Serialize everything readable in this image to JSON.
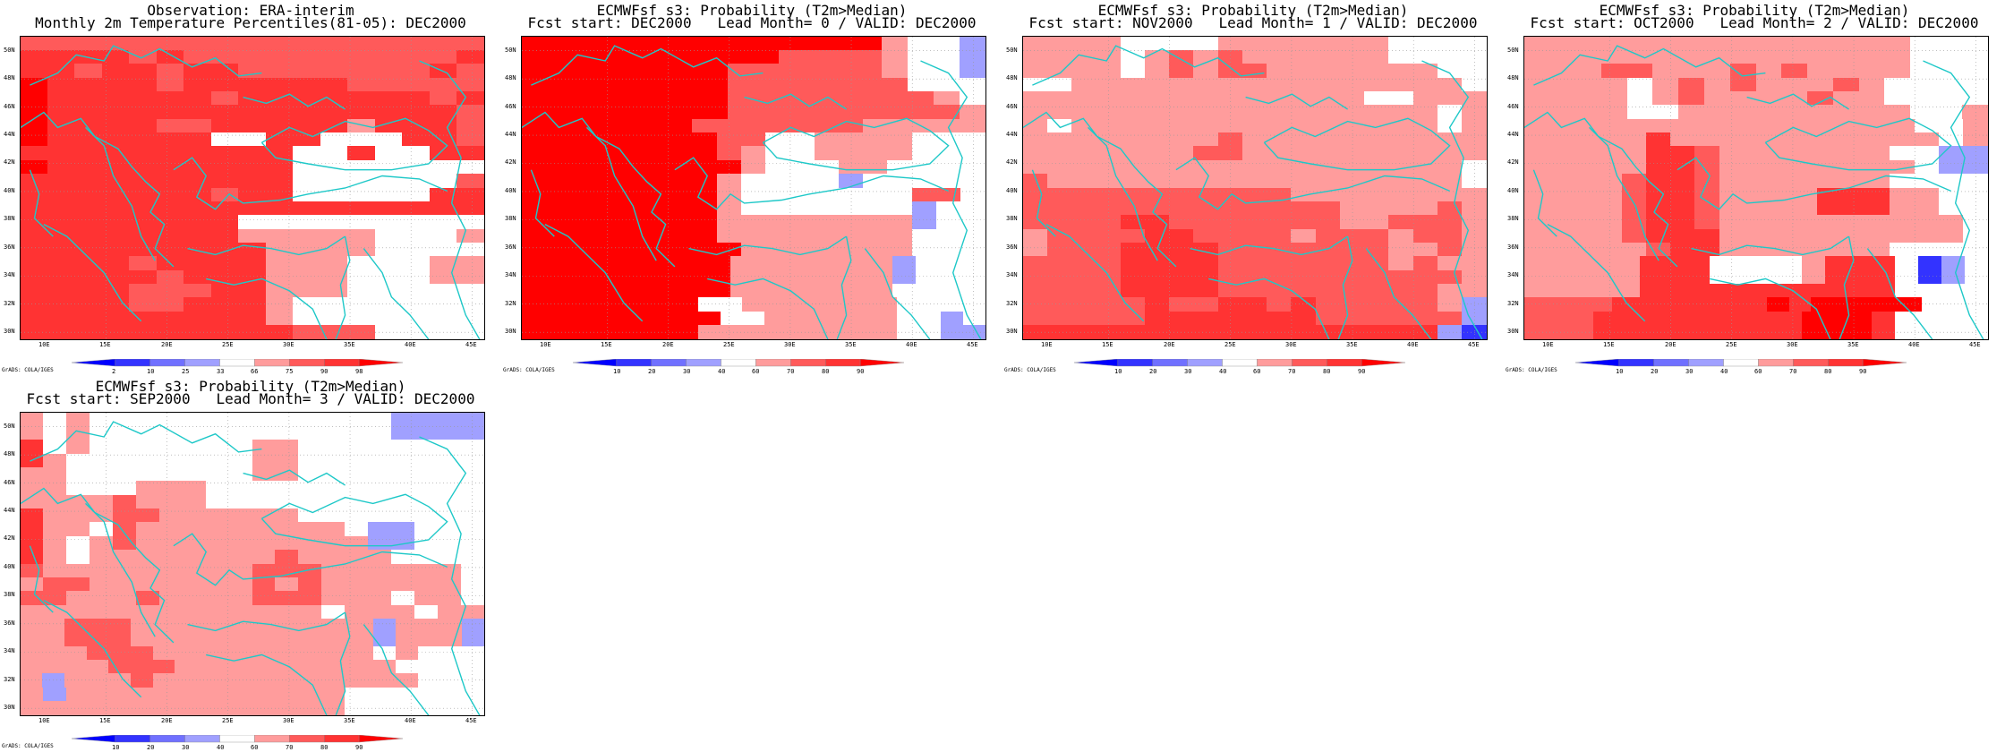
{
  "map_frame": {
    "lat_ticks": [
      "30N",
      "32N",
      "34N",
      "36N",
      "38N",
      "40N",
      "42N",
      "44N",
      "46N",
      "48N",
      "50N"
    ],
    "lon_ticks": [
      "10E",
      "15E",
      "20E",
      "25E",
      "30E",
      "35E",
      "40E",
      "45E"
    ],
    "grads_label": "GrADS: COLA/IGES"
  },
  "palette": {
    "dark_red": "#ff0000",
    "red": "#ff3333",
    "mid_red": "#ff5a5a",
    "light_red": "#ff9c9c",
    "white": "#ffffff",
    "light_blue": "#a0a0ff",
    "mid_blue": "#7070ff",
    "blue": "#3333ff",
    "coast": "#1ec8c8"
  },
  "panels": [
    {
      "title1": "Observation: ERA-interim",
      "title2": "Monthly 2m Temperature Percentiles(81-05): DEC2000",
      "colorbar_labels": [
        "2",
        "10",
        "25",
        "33",
        "66",
        "75",
        "90",
        "98"
      ],
      "grid": [
        "ccccccccccccccccc",
        "bbbbcbccccccccccb",
        "bbcbbcbbcccccccbc",
        "abbbbcbbbbbbccccc",
        "abbbbbbcbbbbbbbcb",
        "abbbbbbbbbbbbbbbc",
        "abbbbccbbbbbdbbbc",
        "abbbbbbwwbbwwwbbc",
        "bbbbbbbbbbwwbwwbb",
        "abbbbbbbbbwwwwwww",
        "bbbbbbbbbbwwwwwwc",
        "bbbbbbbcbbwwwwwbb",
        "bbbbbbbbbbbbbbbbb",
        "bbbbbbbbwwwwwwwww",
        "bbbbbbbbdddddwwwd",
        "bbbbbbbbbddddwwww",
        "bbbbcbbbbdddwwwdd",
        "bbbbbcbbbdddwwwdd",
        "bbbbcccbbdddwwwww",
        "bbbbccbbbdwwwwwww",
        "bbbbbbbbbdwwwwwww",
        "bbbbbbbbbbcccwwww"
      ]
    },
    {
      "title1": "ECMWFsf s3: Probability (T2m>Median)",
      "title2": "Fcst start: DEC2000   Lead Month= 0 / VALID: DEC2000",
      "colorbar_labels": [
        "10",
        "20",
        "30",
        "40",
        "60",
        "70",
        "80",
        "90"
      ],
      "grid": [
        "aaaaaaaaaaaaaadwwg",
        "aaaaaaaaaaccccdwwg",
        "aaaaaaaaccccccdwwg",
        "aaaaaaaacccccccwww",
        "aaaaaaaaccccccccdw",
        "aaaaaaaacccccccccd",
        "aaaaaaacccccccddddd",
        "aaaaaaaaccwwddddwww",
        "aaaaaaaacdwwddddwww",
        "aaaaaaaaadwwwddwwww",
        "aaaaaaaadwwwwgwwwww",
        "aaaaaaaadwwwwwwwccw",
        "aaaaaaaadwwwwwwwgww",
        "aaaaaaaaddddddddgww",
        "aaaaaaaaddddddddwww",
        "aaaaaaaaadddddddwww",
        "aaaaaaaaadddddddgwww",
        "aaaaaaaaadddddddgwww",
        "aaaaaaaaadddddddwwww",
        "aaaaaaaawwdddddddwwww",
        "aaaaaaaaawwddddddwwgw",
        "aaaaaaaadddddddddwwgg"
      ]
    },
    {
      "title1": "ECMWFsf s3: Probability (T2m>Median)",
      "title2": "Fcst start: NOV2000   Lead Month= 1 / VALID: DEC2000",
      "colorbar_labels": [
        "10",
        "20",
        "30",
        "40",
        "60",
        "70",
        "80",
        "90"
      ],
      "grid": [
        "ddddwwwwdddddddwwww",
        "ddddwdcdcddddddwwww",
        "ddddwdcdccdddddddww",
        "wwddddddddddddddddw",
        "ddddddddddddddwwddd",
        "dddddddddddddddddwd",
        "dwdddddddddddddddwd",
        "ddddddddcdddddddddd",
        "dddddddccdddddddddd",
        "ddddddddddddddddddw",
        "cdddddddddddddddddw",
        "cccccccccccdddddddd",
        "cccccccccccccddddcd",
        "ccccbbcccccccddcccd",
        "dccccbbccccdcccdccd",
        "dcccbbbbcccccccddcd",
        "ccccbbbbcccccccdcdd",
        "ccccbbbbccccccccccd",
        "ccccbbbbcccccccccdd",
        "cccccbccbbcbcccccdg",
        "cccccbbbbbbbccccccg",
        "bbbbbbbbbbbbbbbbbgf"
      ]
    },
    {
      "title1": "ECMWFsf s3: Probability (T2m>Median)",
      "title2": "Fcst start: OCT2000   Lead Month= 2 / VALID: DEC2000",
      "colorbar_labels": [
        "10",
        "20",
        "30",
        "40",
        "60",
        "70",
        "80",
        "90"
      ],
      "grid": [
        "dddddddddddddddwww",
        "dddddddddddddddwww",
        "dddccdddcdcddddwww",
        "ddddwdcdcdddcdwwww",
        "ddddwdcddddcddwwww",
        "ddddwwdddddddddwwd",
        "ddddddddddddddddwwd",
        "dddddbdddddddddddwd",
        "dddddbbcdddddddwwgg",
        "dddddbbcddddddddwgg",
        "ddddcbbcdddddddwwww",
        "ddddcbbcddddbbbddww",
        "ddddcbbcddddbbbddww",
        "ddddcbbcddddddddddw",
        "ddddcbbbddddddddddw",
        "dddddcbbdddddddwwww",
        "dddddbbbwwwwdbbbwfgw",
        "dddddbbbwwwwdbbbwfgw",
        "dddddbbbbbbbbbbbwwww",
        "ccccbbbbbbbabaaaaawww",
        "cccbbbbbbbbbaaabwwww",
        "cccbbbbbbbbbaaabwwww"
      ]
    },
    {
      "title1": "ECMWFsf s3: Probability (T2m>Median)",
      "title2": "Fcst start: SEP2000   Lead Month= 3 / VALID: DEC2000",
      "colorbar_labels": [
        "10",
        "20",
        "30",
        "40",
        "60",
        "70",
        "80",
        "90"
      ],
      "grid": [
        "dwdwwwwwwwwwwwwwgggg",
        "dwdwwwwwwwwwwwwwgggg",
        "bwdwwwwwwwddwwwwwwww",
        "bdwwwwwwwwddwwwwwwww",
        "ddwwwwwwwwddwwwwwwww",
        "ddwwwdddwwwwwwwwwwww",
        "ddddcdddwwwwwwwwwwww",
        "bdddccddddddwwwwwwww",
        "bddwcdddddddddwggwww",
        "bdwdcddddddddddggwww",
        "bdwddddddddcddddwwww",
        "cdddddddddcccddddddw",
        "dccdddddddcdcddddddw",
        "ccdddcddddcccdddwddw",
        "dddddddddddddwdddwdd",
        "ddcccdddddddddddgdddg",
        "ddcccdddddddddddgdddg",
        "dddcccddddddddddwdwww",
        "ddddcccddddddddddwwww",
        "dgdddcddddddddddddwww",
        "dgddddddddddddwwwwww",
        "ddddddddddddddwwwwww"
      ]
    }
  ]
}
